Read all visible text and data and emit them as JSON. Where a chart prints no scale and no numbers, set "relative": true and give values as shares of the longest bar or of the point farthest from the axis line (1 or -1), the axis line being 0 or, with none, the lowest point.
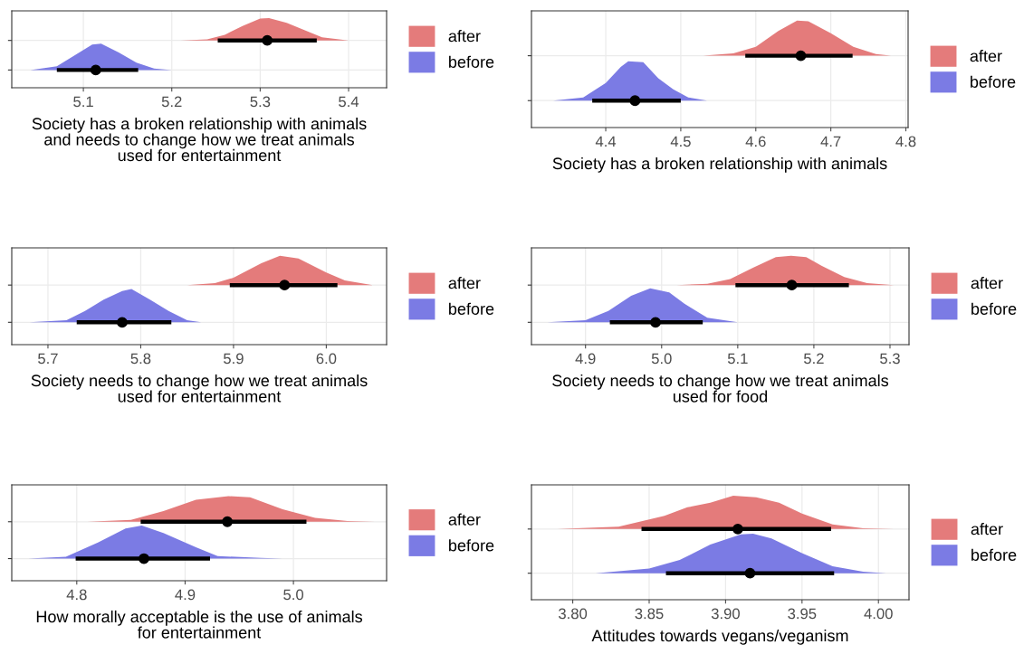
{
  "chart_data": [
    {
      "type": "area",
      "relative": true,
      "tick_labels": "x",
      "grid": true,
      "legend": "right",
      "xlabel": "Society has a broken relationship with animals\nand needs to change how we treat animals\nused for entertainment",
      "xlim": [
        5.019,
        5.443
      ],
      "xticks": [
        5.1,
        5.2,
        5.3,
        5.4
      ],
      "series": [
        {
          "name": "after",
          "color": "#e47b7b",
          "x": [
            5.21,
            5.24,
            5.26,
            5.28,
            5.3,
            5.31,
            5.33,
            5.35,
            5.37,
            5.4
          ],
          "values": [
            0.57,
            0.59,
            0.68,
            0.85,
            0.99,
            1,
            0.91,
            0.77,
            0.63,
            0.57
          ]
        },
        {
          "name": "before",
          "color": "#7b7be4",
          "x": [
            5.04,
            5.07,
            5.09,
            5.11,
            5.12,
            5.14,
            5.16,
            5.18,
            5.2
          ],
          "values": [
            0,
            0.07,
            0.28,
            0.49,
            0.51,
            0.34,
            0.14,
            0.03,
            0
          ]
        },
        {
          "type": "scatter",
          "color": "#000000",
          "x": [
            5.308,
            5.114
          ],
          "values": [
            0.57,
            0
          ],
          "xerrors": [
            [
              5.252,
              5.364
            ],
            [
              5.07,
              5.162
            ]
          ]
        }
      ]
    },
    {
      "type": "area",
      "relative": true,
      "tick_labels": "x",
      "grid": true,
      "legend": "right",
      "xlabel": "Society has a broken relationship with animals",
      "xlim": [
        4.301,
        4.803
      ],
      "xticks": [
        4.4,
        4.5,
        4.6,
        4.7,
        4.8
      ],
      "series": [
        {
          "name": "after",
          "color": "#e47b7b",
          "x": [
            4.53,
            4.57,
            4.6,
            4.63,
            4.655,
            4.67,
            4.7,
            4.73,
            4.76,
            4.78
          ],
          "values": [
            0.56,
            0.59,
            0.67,
            0.87,
            1,
            0.99,
            0.84,
            0.67,
            0.58,
            0.56
          ]
        },
        {
          "name": "before",
          "color": "#7b7be4",
          "x": [
            4.33,
            4.37,
            4.4,
            4.42,
            4.43,
            4.45,
            4.47,
            4.49,
            4.51,
            4.535
          ],
          "values": [
            0,
            0.04,
            0.22,
            0.42,
            0.49,
            0.48,
            0.28,
            0.14,
            0.04,
            0
          ]
        },
        {
          "type": "scatter",
          "color": "#000000",
          "x": [
            4.66,
            4.439
          ],
          "values": [
            0.56,
            0
          ],
          "xerrors": [
            [
              4.586,
              4.729
            ],
            [
              4.382,
              4.5
            ]
          ]
        }
      ]
    },
    {
      "type": "area",
      "relative": true,
      "tick_labels": "x",
      "grid": true,
      "legend": "right",
      "xlabel": "Society needs to change how we treat animals\nused for entertainment",
      "xlim": [
        5.661,
        6.065
      ],
      "xticks": [
        5.7,
        5.8,
        5.9,
        {
          "value": 6.0,
          "label": "6.0"
        }
      ],
      "series": [
        {
          "name": "after",
          "color": "#e47b7b",
          "x": [
            5.85,
            5.88,
            5.9,
            5.93,
            5.95,
            5.97,
            6.0,
            6.02,
            6.05
          ],
          "values": [
            0.56,
            0.59,
            0.67,
            0.89,
            1,
            0.96,
            0.75,
            0.63,
            0.56
          ]
        },
        {
          "name": "before",
          "color": "#7b7be4",
          "x": [
            5.68,
            5.72,
            5.74,
            5.76,
            5.78,
            5.79,
            5.81,
            5.83,
            5.85,
            5.865
          ],
          "values": [
            0,
            0.03,
            0.17,
            0.34,
            0.47,
            0.5,
            0.34,
            0.17,
            0.03,
            0
          ]
        },
        {
          "type": "scatter",
          "color": "#000000",
          "x": [
            5.955,
            5.78
          ],
          "values": [
            0.56,
            0
          ],
          "xerrors": [
            [
              5.896,
              6.012
            ],
            [
              5.731,
              5.833
            ]
          ]
        }
      ]
    },
    {
      "type": "area",
      "relative": true,
      "tick_labels": "x",
      "grid": true,
      "legend": "right",
      "xlabel": "Society needs to change how we treat animals\nused for food",
      "xlim": [
        4.829,
        5.325
      ],
      "xticks": [
        4.9,
        {
          "value": 5.0,
          "label": "5.0"
        },
        5.1,
        5.2,
        5.3
      ],
      "series": [
        {
          "name": "after",
          "color": "#e47b7b",
          "x": [
            5.02,
            5.06,
            5.09,
            5.12,
            5.15,
            5.17,
            5.19,
            5.21,
            5.24,
            5.27,
            5.305
          ],
          "values": [
            0.56,
            0.58,
            0.65,
            0.82,
            0.98,
            1,
            0.98,
            0.85,
            0.68,
            0.59,
            0.56
          ]
        },
        {
          "name": "before",
          "color": "#7b7be4",
          "x": [
            4.85,
            4.9,
            4.93,
            4.96,
            4.985,
            5.01,
            5.03,
            5.06,
            5.1
          ],
          "values": [
            0,
            0.03,
            0.17,
            0.4,
            0.51,
            0.45,
            0.28,
            0.07,
            0
          ]
        },
        {
          "type": "scatter",
          "color": "#000000",
          "x": [
            5.171,
            4.992
          ],
          "values": [
            0.56,
            0
          ],
          "xerrors": [
            [
              5.097,
              5.246
            ],
            [
              4.932,
              5.054
            ]
          ]
        }
      ]
    },
    {
      "type": "area",
      "relative": true,
      "tick_labels": "x",
      "grid": true,
      "legend": "right",
      "xlabel": "How morally acceptable is the use of animals\nfor entertainment",
      "xlim": [
        4.74,
        5.086
      ],
      "xticks": [
        4.8,
        4.9,
        {
          "value": 5.0,
          "label": "5.0"
        }
      ],
      "series": [
        {
          "name": "after",
          "color": "#e47b7b",
          "x": [
            4.81,
            4.85,
            4.88,
            4.91,
            4.94,
            4.96,
            4.99,
            5.02,
            5.05,
            5.075
          ],
          "values": [
            0.59,
            0.62,
            0.76,
            0.94,
            1,
            0.98,
            0.79,
            0.65,
            0.6,
            0.59
          ]
        },
        {
          "name": "before",
          "color": "#7b7be4",
          "x": [
            4.755,
            4.79,
            4.82,
            4.845,
            4.86,
            4.88,
            4.91,
            4.93,
            4.97,
            4.99
          ],
          "values": [
            0,
            0.03,
            0.26,
            0.48,
            0.53,
            0.41,
            0.18,
            0.04,
            0.01,
            0
          ]
        },
        {
          "type": "scatter",
          "color": "#000000",
          "x": [
            4.939,
            4.862
          ],
          "values": [
            0.59,
            0
          ],
          "xerrors": [
            [
              4.859,
              5.012
            ],
            [
              4.799,
              4.923
            ]
          ]
        }
      ]
    },
    {
      "type": "area",
      "relative": true,
      "tick_labels": "x",
      "grid": true,
      "legend": "right",
      "xlabel": "Attitudes towards vegans/veganism",
      "xlim": [
        3.773,
        4.02
      ],
      "xticks": [
        {
          "value": 3.8,
          "label": "3.80"
        },
        3.85,
        {
          "value": 3.9,
          "label": "3.90"
        },
        3.95,
        {
          "value": 4.0,
          "label": "4.00"
        }
      ],
      "series": [
        {
          "name": "after",
          "color": "#e47b7b",
          "x": [
            3.79,
            3.83,
            3.86,
            3.875,
            3.89,
            3.905,
            3.92,
            3.935,
            3.95,
            3.97,
            3.99,
            4.01
          ],
          "values": [
            0.57,
            0.6,
            0.74,
            0.85,
            0.91,
            1,
            0.98,
            0.91,
            0.77,
            0.63,
            0.58,
            0.57
          ]
        },
        {
          "name": "before",
          "color": "#7b7be4",
          "x": [
            3.815,
            3.85,
            3.87,
            3.89,
            3.91,
            3.918,
            3.93,
            3.95,
            3.97,
            3.99,
            4.005
          ],
          "values": [
            0,
            0.06,
            0.17,
            0.37,
            0.5,
            0.51,
            0.45,
            0.26,
            0.09,
            0.02,
            0
          ]
        },
        {
          "type": "scatter",
          "color": "#000000",
          "x": [
            3.908,
            3.916
          ],
          "values": [
            0.57,
            0
          ],
          "xerrors": [
            [
              3.845,
              3.969
            ],
            [
              3.861,
              3.971
            ]
          ]
        }
      ]
    }
  ]
}
